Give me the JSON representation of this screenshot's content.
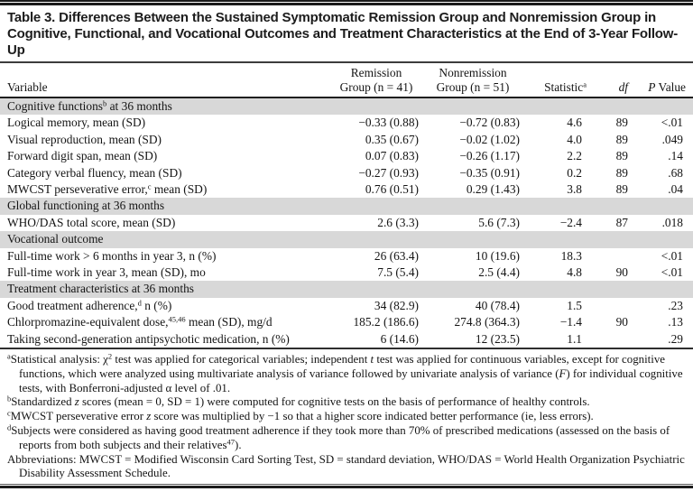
{
  "title": "Table 3. Differences Between the Sustained Symptomatic Remission Group and Nonremission Group in Cognitive, Functional, and Vocational Outcomes and Treatment Characteristics at the End of 3-Year Follow-Up",
  "colors": {
    "section_band": "#d8d8d8",
    "rule_black": "#1b1b1b",
    "text": "#141414",
    "background": "#ffffff"
  },
  "table": {
    "columns": {
      "variable": "Variable",
      "remission_line1": "Remission",
      "remission_line2": "Group (n = 41)",
      "nonremission_line1": "Nonremission",
      "nonremission_line2": "Group (n = 51)",
      "statistic_label": "Statistic",
      "statistic_sup": "a",
      "df_label": "df",
      "p_italic": "P",
      "p_rest": " Value"
    },
    "rows": [
      {
        "type": "section",
        "label": [
          {
            "t": "Cognitive functions"
          },
          {
            "t": "b",
            "sup": true
          },
          {
            "t": " at 36 months"
          }
        ]
      },
      {
        "type": "data",
        "label": [
          {
            "t": "Logical memory, mean (SD)"
          }
        ],
        "remission": "−0.33 (0.88)",
        "nonremission": "−0.72 (0.83)",
        "statistic": "4.6",
        "df": "89",
        "p": "<.01"
      },
      {
        "type": "data",
        "label": [
          {
            "t": "Visual reproduction, mean (SD)"
          }
        ],
        "remission": "0.35 (0.67)",
        "nonremission": "−0.02 (1.02)",
        "statistic": "4.0",
        "df": "89",
        "p": ".049"
      },
      {
        "type": "data",
        "label": [
          {
            "t": "Forward digit span, mean (SD)"
          }
        ],
        "remission": "0.07 (0.83)",
        "nonremission": "−0.26 (1.17)",
        "statistic": "2.2",
        "df": "89",
        "p": ".14"
      },
      {
        "type": "data",
        "label": [
          {
            "t": "Category verbal fluency, mean (SD)"
          }
        ],
        "remission": "−0.27 (0.93)",
        "nonremission": "−0.35 (0.91)",
        "statistic": "0.2",
        "df": "89",
        "p": ".68"
      },
      {
        "type": "data",
        "label": [
          {
            "t": "MWCST perseverative error,"
          },
          {
            "t": "c",
            "sup": true
          },
          {
            "t": " mean (SD)"
          }
        ],
        "remission": "0.76 (0.51)",
        "nonremission": "0.29 (1.43)",
        "statistic": "3.8",
        "df": "89",
        "p": ".04"
      },
      {
        "type": "section",
        "label": [
          {
            "t": "Global functioning at 36 months"
          }
        ]
      },
      {
        "type": "data",
        "label": [
          {
            "t": "WHO/DAS total score, mean (SD)"
          }
        ],
        "remission": "2.6 (3.3)",
        "nonremission": "5.6 (7.3)",
        "statistic": "−2.4",
        "df": "87",
        "p": ".018"
      },
      {
        "type": "section",
        "label": [
          {
            "t": "Vocational outcome"
          }
        ]
      },
      {
        "type": "data",
        "label": [
          {
            "t": "Full-time work > 6 months in year 3, n (%)"
          }
        ],
        "remission": "26 (63.4)",
        "nonremission": "10 (19.6)",
        "statistic": "18.3",
        "df": "",
        "p": "<.01"
      },
      {
        "type": "data",
        "label": [
          {
            "t": "Full-time work in year 3, mean (SD), mo"
          }
        ],
        "remission": "7.5 (5.4)",
        "nonremission": "2.5 (4.4)",
        "statistic": "4.8",
        "df": "90",
        "p": "<.01"
      },
      {
        "type": "section",
        "label": [
          {
            "t": "Treatment characteristics at 36 months"
          }
        ]
      },
      {
        "type": "data",
        "label": [
          {
            "t": "Good treatment adherence,"
          },
          {
            "t": "d",
            "sup": true
          },
          {
            "t": " n (%)"
          }
        ],
        "remission": "34 (82.9)",
        "nonremission": "40 (78.4)",
        "statistic": "1.5",
        "df": "",
        "p": ".23"
      },
      {
        "type": "data",
        "label": [
          {
            "t": "Chlorpromazine-equivalent dose,"
          },
          {
            "t": "45,46",
            "sup": true
          },
          {
            "t": " mean (SD), mg/d"
          }
        ],
        "remission": "185.2 (186.6)",
        "nonremission": "274.8 (364.3)",
        "statistic": "−1.4",
        "df": "90",
        "p": ".13"
      },
      {
        "type": "data",
        "label": [
          {
            "t": "Taking second-generation antipsychotic medication, n (%)"
          }
        ],
        "remission": "6 (14.6)",
        "nonremission": "12 (23.5)",
        "statistic": "1.1",
        "df": "",
        "p": ".29"
      }
    ]
  },
  "footnotes": [
    [
      {
        "t": "a",
        "sup": true
      },
      {
        "t": "Statistical analysis: χ"
      },
      {
        "t": "2",
        "sup": true
      },
      {
        "t": " test was applied for categorical variables; independent "
      },
      {
        "t": "t",
        "i": true
      },
      {
        "t": " test was applied for continuous variables, except for cognitive functions, which were analyzed using multivariate analysis of variance followed by univariate analysis of variance ("
      },
      {
        "t": "F",
        "i": true
      },
      {
        "t": ") for individual cognitive tests, with Bonferroni-adjusted α level of .01."
      }
    ],
    [
      {
        "t": "b",
        "sup": true
      },
      {
        "t": "Standardized "
      },
      {
        "t": "z",
        "i": true
      },
      {
        "t": " scores (mean = 0, SD = 1) were computed for cognitive tests on the basis of performance of healthy controls."
      }
    ],
    [
      {
        "t": "c",
        "sup": true
      },
      {
        "t": "MWCST perseverative error "
      },
      {
        "t": "z",
        "i": true
      },
      {
        "t": " score was multiplied by −1 so that a higher score indicated better performance (ie, less errors)."
      }
    ],
    [
      {
        "t": "d",
        "sup": true
      },
      {
        "t": "Subjects were considered as having good treatment adherence if they took more than 70% of prescribed medications (assessed on the basis of reports from both subjects and their relatives"
      },
      {
        "t": "47",
        "sup": true
      },
      {
        "t": ")."
      }
    ],
    [
      {
        "t": "Abbreviations: MWCST = Modified Wisconsin Card Sorting Test, SD = standard deviation, WHO/DAS = World Health Organization Psychiatric Disability Assessment Schedule."
      }
    ]
  ]
}
